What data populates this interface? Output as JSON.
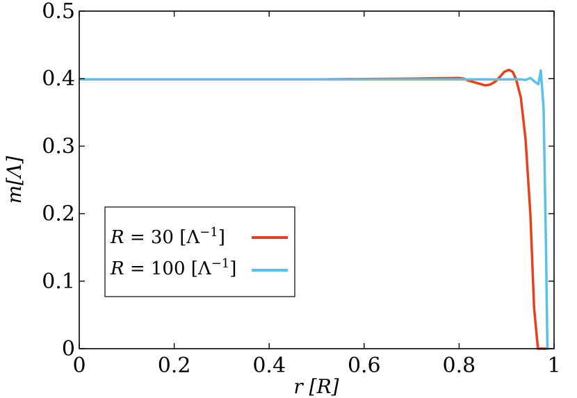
{
  "chart_data": {
    "type": "line",
    "title": "",
    "xlabel": "r [R]",
    "ylabel": "m[Λ]",
    "xlim": [
      0,
      1
    ],
    "ylim": [
      0,
      0.5
    ],
    "x_ticks": [
      "0",
      "0.2",
      "0.4",
      "0.6",
      "0.8",
      "1"
    ],
    "y_ticks": [
      "0",
      "0.1",
      "0.2",
      "0.3",
      "0.4",
      "0.5"
    ],
    "grid": false,
    "legend_position": "center-left",
    "series": [
      {
        "name": "R = 30 [Λ⁻¹]",
        "color": "#e8401c",
        "x": [
          0,
          0.5,
          0.7,
          0.8,
          0.81,
          0.82,
          0.84,
          0.855,
          0.865,
          0.875,
          0.885,
          0.895,
          0.905,
          0.913,
          0.92,
          0.93,
          0.94,
          0.95,
          0.958,
          0.966,
          0.97,
          0.975,
          0.98,
          0.985
        ],
        "y": [
          0.399,
          0.399,
          0.4,
          0.401,
          0.4,
          0.397,
          0.393,
          0.39,
          0.391,
          0.395,
          0.402,
          0.41,
          0.413,
          0.41,
          0.399,
          0.372,
          0.31,
          0.2,
          0.06,
          0,
          0,
          0,
          0,
          0
        ]
      },
      {
        "name": "R = 100 [Λ⁻¹]",
        "color": "#5bc0eb",
        "x": [
          0,
          0.5,
          0.8,
          0.9,
          0.93,
          0.94,
          0.95,
          0.96,
          0.967,
          0.972,
          0.978,
          0.983,
          0.986,
          0.99
        ],
        "y": [
          0.399,
          0.399,
          0.399,
          0.399,
          0.399,
          0.398,
          0.401,
          0.395,
          0.392,
          0.412,
          0.355,
          0.15,
          0,
          0
        ]
      }
    ]
  }
}
